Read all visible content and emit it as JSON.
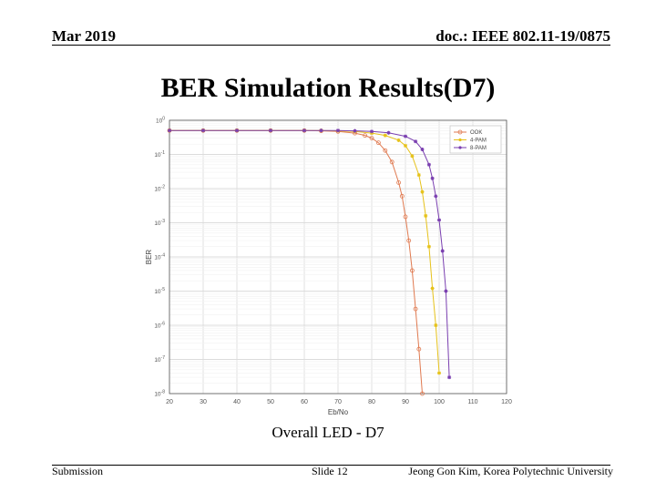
{
  "header": {
    "date": "Mar 2019",
    "doc": "doc.: IEEE 802.11-19/0875"
  },
  "slide_title": "BER Simulation Results(D7)",
  "caption": "Overall LED - D7",
  "footer": {
    "left": "Submission",
    "center": "Slide 12",
    "right": "Jeong Gon Kim, Korea Polytechnic University"
  },
  "colors": {
    "ook": "#e07a50",
    "pam4": "#e6c21a",
    "pam8": "#7a3fb0"
  },
  "chart_data": {
    "type": "line",
    "title": "",
    "xlabel": "Eb/No",
    "ylabel": "BER",
    "xlim": [
      20,
      120
    ],
    "ylim": [
      1e-08,
      1
    ],
    "yscale": "log",
    "grid": true,
    "legend_position": "top-right",
    "x_ticks": [
      "20",
      "30",
      "40",
      "50",
      "60",
      "70",
      "80",
      "90",
      "100",
      "110",
      "120"
    ],
    "y_ticks": [
      "10^0",
      "10^-1",
      "10^-2",
      "10^-3",
      "10^-4",
      "10^-5",
      "10^-6",
      "10^-7",
      "10^-8"
    ],
    "series": [
      {
        "name": "OOK",
        "marker": "circle",
        "x": [
          20,
          30,
          40,
          50,
          60,
          65,
          70,
          75,
          78,
          80,
          82,
          84,
          86,
          88,
          89,
          90,
          91,
          92,
          93,
          94,
          95
        ],
        "y": [
          0.5,
          0.5,
          0.5,
          0.5,
          0.5,
          0.49,
          0.47,
          0.42,
          0.36,
          0.3,
          0.22,
          0.13,
          0.06,
          0.015,
          0.006,
          0.0015,
          0.0003,
          4e-05,
          3e-06,
          2e-07,
          1e-08
        ]
      },
      {
        "name": "4-PAM",
        "marker": "star",
        "x": [
          20,
          30,
          40,
          50,
          60,
          65,
          70,
          75,
          80,
          84,
          88,
          90,
          92,
          94,
          95,
          96,
          97,
          98,
          99,
          100
        ],
        "y": [
          0.5,
          0.5,
          0.5,
          0.5,
          0.5,
          0.5,
          0.49,
          0.47,
          0.42,
          0.36,
          0.26,
          0.18,
          0.09,
          0.025,
          0.008,
          0.0016,
          0.0002,
          1.2e-05,
          1e-06,
          4e-08
        ]
      },
      {
        "name": "8-PAM",
        "marker": "star",
        "x": [
          20,
          30,
          40,
          50,
          60,
          65,
          70,
          75,
          80,
          85,
          90,
          93,
          95,
          97,
          98,
          99,
          100,
          101,
          102,
          103
        ],
        "y": [
          0.5,
          0.5,
          0.5,
          0.5,
          0.5,
          0.5,
          0.5,
          0.49,
          0.47,
          0.43,
          0.34,
          0.24,
          0.14,
          0.05,
          0.02,
          0.006,
          0.0012,
          0.00015,
          1e-05,
          3e-08
        ]
      }
    ]
  }
}
